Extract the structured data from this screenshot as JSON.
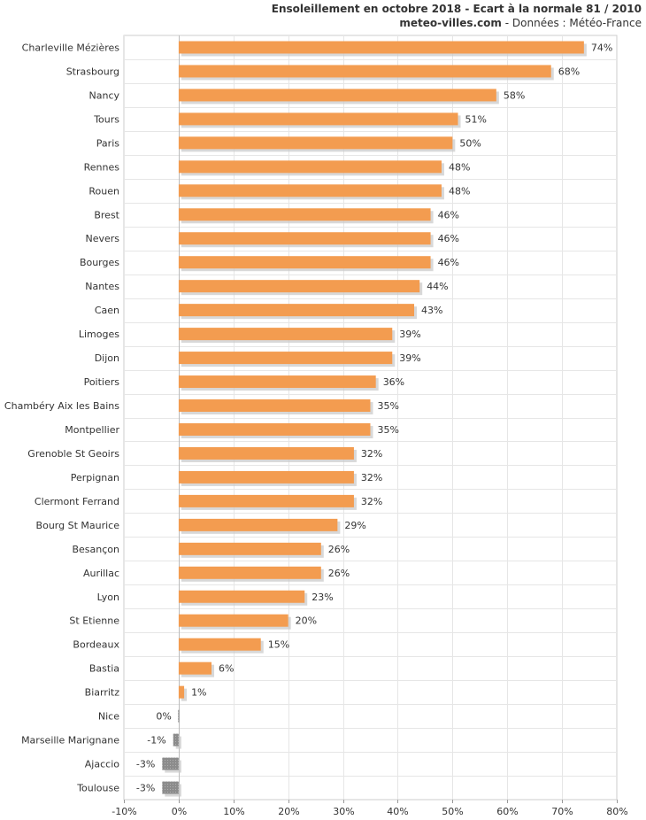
{
  "header": {
    "title": "Ensoleillement en octobre 2018 - Ecart à la normale 81 / 2010",
    "site": "meteo-villes.com",
    "source": " - Données : Météo-France"
  },
  "chart_data": {
    "type": "bar",
    "orientation": "horizontal",
    "title": "Ensoleillement en octobre 2018 - Ecart à la normale 81 / 2010",
    "categories": [
      "Charleville Mézières",
      "Strasbourg",
      "Nancy",
      "Tours",
      "Paris",
      "Rennes",
      "Rouen",
      "Brest",
      "Nevers",
      "Bourges",
      "Nantes",
      "Caen",
      "Limoges",
      "Dijon",
      "Poitiers",
      "Chambéry Aix les Bains",
      "Montpellier",
      "Grenoble St Geoirs",
      "Perpignan",
      "Clermont Ferrand",
      "Bourg St Maurice",
      "Besançon",
      "Aurillac",
      "Lyon",
      "St Etienne",
      "Bordeaux",
      "Bastia",
      "Biarritz",
      "Nice",
      "Marseille Marignane",
      "Ajaccio",
      "Toulouse"
    ],
    "values": [
      74,
      68,
      58,
      51,
      50,
      48,
      48,
      46,
      46,
      46,
      44,
      43,
      39,
      39,
      36,
      35,
      35,
      32,
      32,
      32,
      29,
      26,
      26,
      23,
      20,
      15,
      6,
      1,
      0,
      -1,
      -3,
      -3
    ],
    "value_labels": [
      "74%",
      "68%",
      "58%",
      "51%",
      "50%",
      "48%",
      "48%",
      "46%",
      "46%",
      "46%",
      "44%",
      "43%",
      "39%",
      "39%",
      "36%",
      "35%",
      "35%",
      "32%",
      "32%",
      "32%",
      "29%",
      "26%",
      "26%",
      "23%",
      "20%",
      "15%",
      "6%",
      "1%",
      "0%",
      "-1%",
      "-3%",
      "-3%"
    ],
    "xlim": [
      -10,
      80
    ],
    "x_ticks": [
      -10,
      0,
      10,
      20,
      30,
      40,
      50,
      60,
      70,
      80
    ],
    "x_tick_labels": [
      "-10%",
      "0%",
      "10%",
      "20%",
      "30%",
      "40%",
      "50%",
      "60%",
      "70%",
      "80%"
    ],
    "grid": true,
    "colors": {
      "positive": "#f39c50",
      "negative": "#8c8c8c",
      "shadow": "#c8c8c8",
      "grid": "#e6e6e6",
      "axis": "#cccccc"
    }
  }
}
